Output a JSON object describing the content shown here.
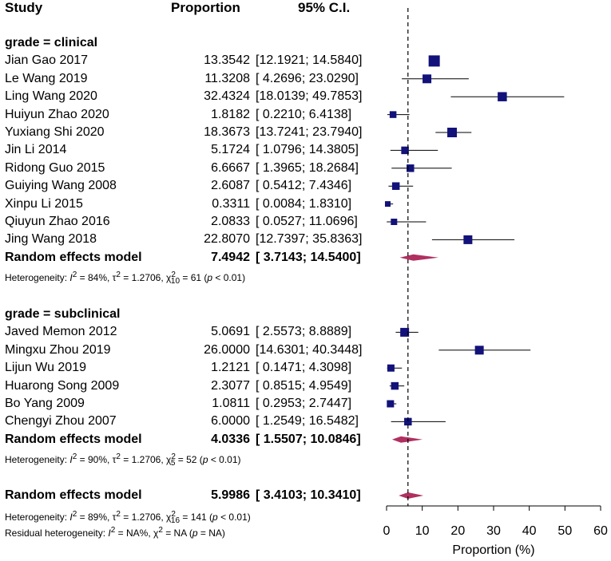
{
  "header": {
    "study": "Study",
    "proportion": "Proportion",
    "ci": "95% C.I."
  },
  "groups": [
    {
      "label": "grade = clinical",
      "studies": [
        {
          "name": "Jian Gao 2017",
          "est_text": "13.3542",
          "ci_text": "[12.1921; 14.5840]",
          "est": 13.3542,
          "lo": 12.1921,
          "hi": 14.584,
          "weight": 1.4
        },
        {
          "name": "Le Wang 2019",
          "est_text": "11.3208",
          "ci_text": "[ 4.2696; 23.0290]",
          "est": 11.3208,
          "lo": 4.2696,
          "hi": 23.029,
          "weight": 1.1
        },
        {
          "name": "Ling Wang 2020",
          "est_text": "32.4324",
          "ci_text": "[18.0139; 49.7853]",
          "est": 32.4324,
          "lo": 18.0139,
          "hi": 49.7853,
          "weight": 1.15
        },
        {
          "name": "Huiyun Zhao 2020",
          "est_text": "1.8182",
          "ci_text": "[ 0.2210; 6.4138]",
          "est": 1.8182,
          "lo": 0.221,
          "hi": 6.4138,
          "weight": 0.85
        },
        {
          "name": "Yuxiang Shi 2020",
          "est_text": "18.3673",
          "ci_text": "[13.7241; 23.7940]",
          "est": 18.3673,
          "lo": 13.7241,
          "hi": 23.794,
          "weight": 1.2
        },
        {
          "name": "Jin Li 2014",
          "est_text": "5.1724",
          "ci_text": "[ 1.0796; 14.3805]",
          "est": 5.1724,
          "lo": 1.0796,
          "hi": 14.3805,
          "weight": 0.95
        },
        {
          "name": "Ridong Guo 2015",
          "est_text": "6.6667",
          "ci_text": "[ 1.3965; 18.2684]",
          "est": 6.6667,
          "lo": 1.3965,
          "hi": 18.2684,
          "weight": 0.95
        },
        {
          "name": "Guiying Wang 2008",
          "est_text": "2.6087",
          "ci_text": "[ 0.5412; 7.4346]",
          "est": 2.6087,
          "lo": 0.5412,
          "hi": 7.4346,
          "weight": 0.95
        },
        {
          "name": "Xinpu Li 2015",
          "est_text": "0.3311",
          "ci_text": "[ 0.0084; 1.8310]",
          "est": 0.3311,
          "lo": 0.0084,
          "hi": 1.831,
          "weight": 0.7
        },
        {
          "name": "Qiuyun Zhao 2016",
          "est_text": "2.0833",
          "ci_text": "[ 0.0527; 11.0696]",
          "est": 2.0833,
          "lo": 0.0527,
          "hi": 11.0696,
          "weight": 0.8
        },
        {
          "name": "Jing Wang 2018",
          "est_text": "22.8070",
          "ci_text": "[12.7397; 35.8363]",
          "est": 22.807,
          "lo": 12.7397,
          "hi": 35.8363,
          "weight": 1.1
        }
      ],
      "model": {
        "label": "Random effects model",
        "est_text": "7.4942",
        "ci_text": "[ 3.7143; 14.5400]",
        "est": 7.4942,
        "lo": 3.7143,
        "hi": 14.54
      },
      "heterogeneity": {
        "prefix": "Heterogeneity: ",
        "I2": "84%",
        "tau2": "1.2706",
        "df": "10",
        "chi2": "61",
        "p": "< 0.01"
      }
    },
    {
      "label": "grade = subclinical",
      "studies": [
        {
          "name": "Javed Memon 2012",
          "est_text": "5.0691",
          "ci_text": "[ 2.5573; 8.8889]",
          "est": 5.0691,
          "lo": 2.5573,
          "hi": 8.8889,
          "weight": 1.1
        },
        {
          "name": "Mingxu Zhou 2019",
          "est_text": "26.0000",
          "ci_text": "[14.6301; 40.3448]",
          "est": 26.0,
          "lo": 14.6301,
          "hi": 40.3448,
          "weight": 1.1
        },
        {
          "name": "Lijun Wu 2019",
          "est_text": "1.2121",
          "ci_text": "[ 0.1471; 4.3098]",
          "est": 1.2121,
          "lo": 0.1471,
          "hi": 4.3098,
          "weight": 0.9
        },
        {
          "name": "Huarong Song 2009",
          "est_text": "2.3077",
          "ci_text": "[ 0.8515; 4.9549]",
          "est": 2.3077,
          "lo": 0.8515,
          "hi": 4.9549,
          "weight": 0.95
        },
        {
          "name": "Bo Yang 2009",
          "est_text": "1.0811",
          "ci_text": "[ 0.2953; 2.7447]",
          "est": 1.0811,
          "lo": 0.2953,
          "hi": 2.7447,
          "weight": 0.9
        },
        {
          "name": "Chengyi Zhou 2007",
          "est_text": "6.0000",
          "ci_text": "[ 1.2549; 16.5482]",
          "est": 6.0,
          "lo": 1.2549,
          "hi": 16.5482,
          "weight": 0.95
        }
      ],
      "model": {
        "label": "Random effects model",
        "est_text": "4.0336",
        "ci_text": "[ 1.5507; 10.0846]",
        "est": 4.0336,
        "lo": 1.5507,
        "hi": 10.0846
      },
      "heterogeneity": {
        "prefix": "Heterogeneity: ",
        "I2": "90%",
        "tau2": "1.2706",
        "df": "5",
        "chi2": "52",
        "p": "< 0.01"
      }
    }
  ],
  "overall": {
    "label": "Random effects model",
    "est_text": "5.9986",
    "ci_text": "[ 3.4103; 10.3410]",
    "est": 5.9986,
    "lo": 3.4103,
    "hi": 10.341,
    "heterogeneity": {
      "prefix": "Heterogeneity: ",
      "I2": "89%",
      "tau2": "1.2706",
      "df": "16",
      "chi2": "141",
      "p": "< 0.01"
    },
    "residual": {
      "prefix": "Residual heterogeneity: ",
      "I2": "NA%",
      "chi2": "NA",
      "p": "= NA"
    }
  },
  "chart_data": {
    "type": "forest",
    "xlabel": "Proportion (%)",
    "xlim": [
      0,
      60
    ],
    "xticks": [
      0,
      10,
      20,
      30,
      40,
      50,
      60
    ],
    "reference_line": 5.9986,
    "colors": {
      "square": "#12127a",
      "diamond": "#b03060",
      "line": "#000000"
    }
  }
}
